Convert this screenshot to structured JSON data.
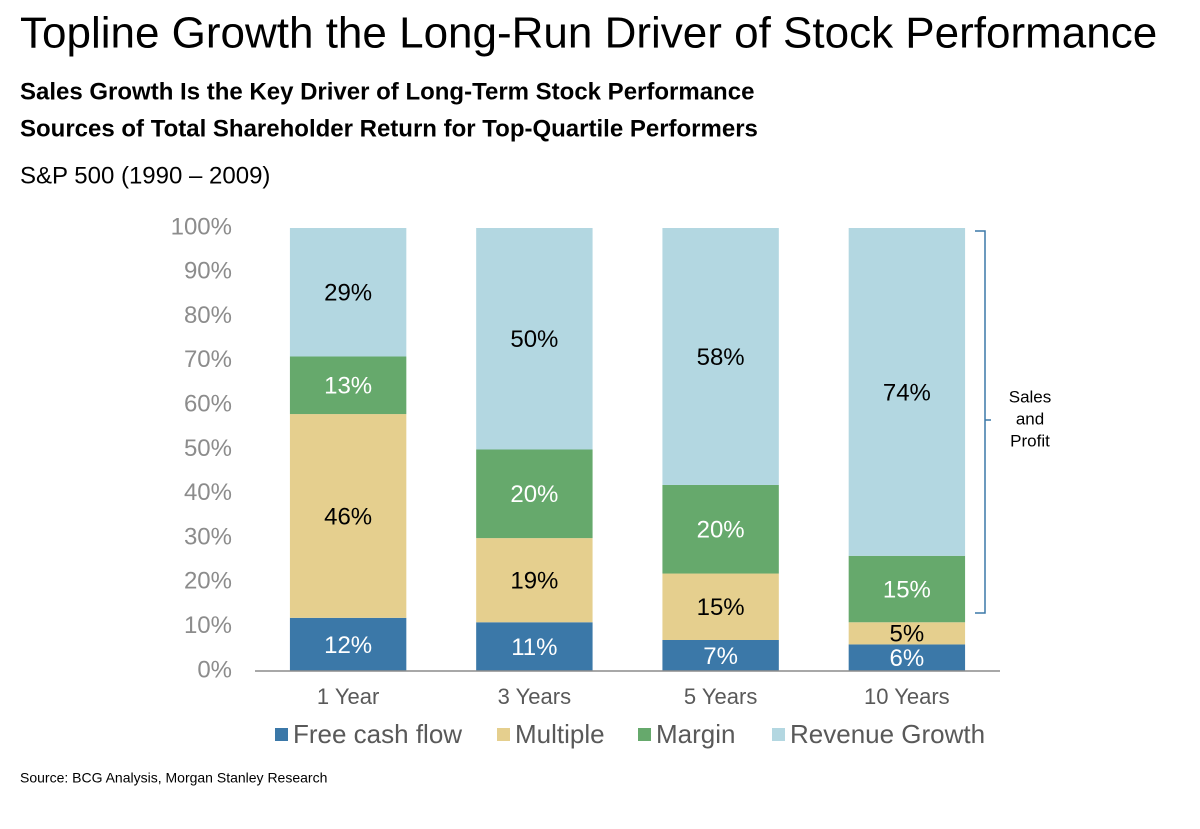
{
  "chart_data": {
    "type": "stacked_bar",
    "title": "Topline Growth the Long-Run Driver of Stock Performance",
    "subtitle": [
      "Sales Growth Is the Key Driver of Long-Term Stock Performance",
      "Sources of Total Shareholder Return for Top-Quartile Performers"
    ],
    "note": "S&P 500 (1990 – 2009)",
    "annotation": [
      "Sales",
      "and",
      "Profit"
    ],
    "source": "Source: BCG Analysis, Morgan Stanley Research",
    "categories": [
      "1 Year",
      "3 Years",
      "5 Years",
      "10 Years"
    ],
    "series": [
      {
        "name": "Free cash flow",
        "color": "#3b78a8",
        "values": [
          12,
          11,
          7,
          6
        ],
        "value_labels": [
          "12%",
          "11%",
          "7%",
          "6%"
        ]
      },
      {
        "name": "Multiple",
        "color": "#e5cf8e",
        "values": [
          46,
          19,
          15,
          5
        ],
        "value_labels": [
          "46%",
          "19%",
          "15%",
          "5%"
        ]
      },
      {
        "name": "Margin",
        "color": "#66a96c",
        "values": [
          13,
          20,
          20,
          15
        ],
        "value_labels": [
          "13%",
          "20%",
          "20%",
          "15%"
        ]
      },
      {
        "name": "Revenue Growth",
        "color": "#b3d7e1",
        "values": [
          29,
          50,
          58,
          74
        ],
        "value_labels": [
          "29%",
          "50%",
          "58%",
          "74%"
        ]
      }
    ],
    "ylim": [
      0,
      100
    ],
    "yticks": [
      {
        "value": 0,
        "label": "0%"
      },
      {
        "value": 10,
        "label": "10%"
      },
      {
        "value": 20,
        "label": "20%"
      },
      {
        "value": 30,
        "label": "30%"
      },
      {
        "value": 40,
        "label": "40%"
      },
      {
        "value": 50,
        "label": "50%"
      },
      {
        "value": 60,
        "label": "60%"
      },
      {
        "value": 70,
        "label": "70%"
      },
      {
        "value": 80,
        "label": "80%"
      },
      {
        "value": 90,
        "label": "90%"
      },
      {
        "value": 100,
        "label": "100%"
      }
    ],
    "legend": "bottom"
  }
}
